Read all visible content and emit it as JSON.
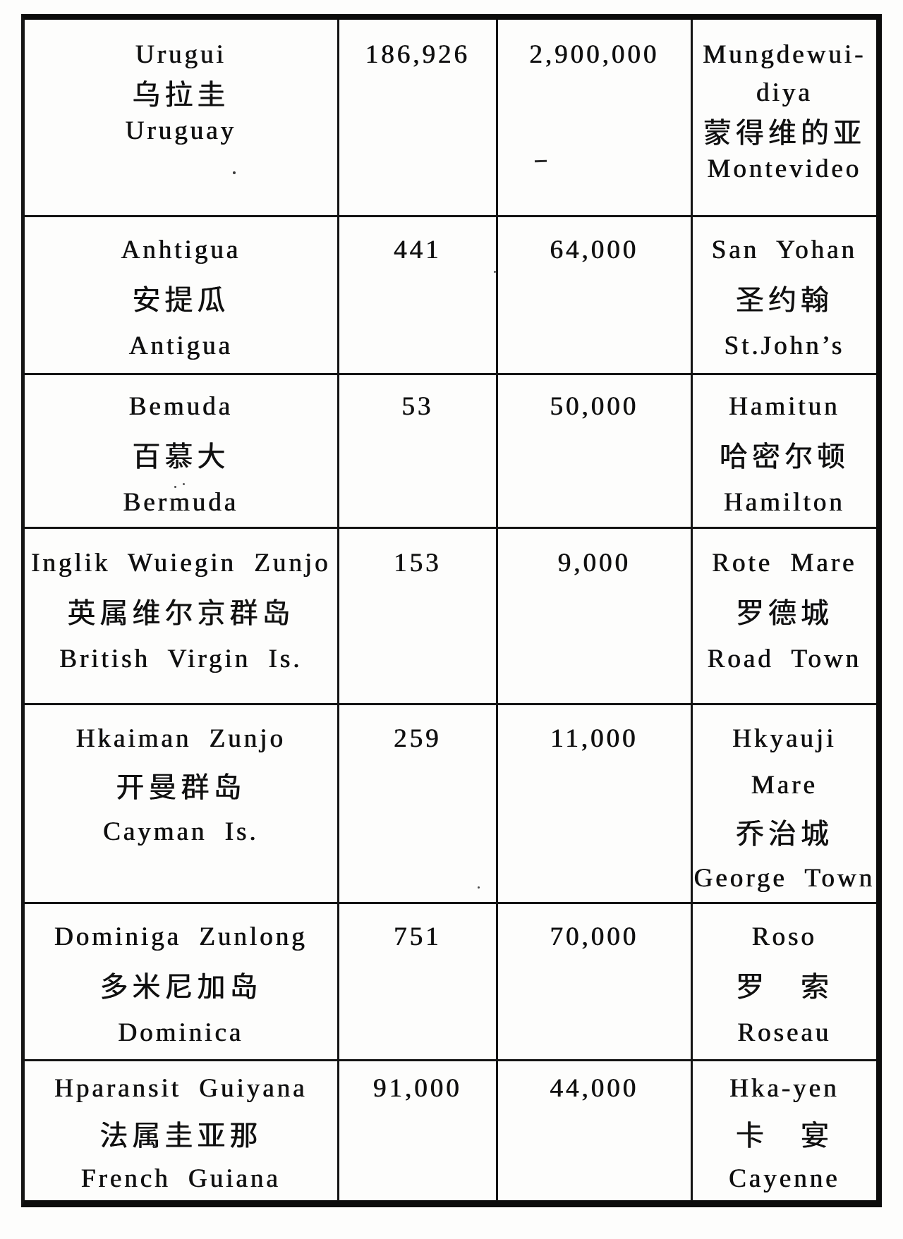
{
  "document": {
    "kind": "scanned-gazetteer-table",
    "paper_color": "#fdfdfc",
    "ink_color": "#101010"
  },
  "table": {
    "semantic_columns": [
      "country-name",
      "area",
      "population",
      "capital"
    ],
    "rows": [
      {
        "name_lines": [
          "Urugui",
          "乌拉圭",
          "Uruguay"
        ],
        "area": "186,926",
        "population": "2,900,000",
        "capital_lines": [
          "Mungdewui-",
          "diya",
          "蒙得维的亚",
          "Montevideo"
        ]
      },
      {
        "name_lines": [
          "Anhtigua",
          "安提瓜",
          "Antigua"
        ],
        "area": "441",
        "population": "64,000",
        "capital_lines": [
          "San Yohan",
          "圣约翰",
          "St.John’s"
        ]
      },
      {
        "name_lines": [
          "Bemuda",
          "百慕大",
          "Bermuda"
        ],
        "area": "53",
        "population": "50,000",
        "capital_lines": [
          "Hamitun",
          "哈密尔顿",
          "Hamilton"
        ]
      },
      {
        "name_lines": [
          "Inglik Wuiegin Zunjo",
          "英属维尔京群岛",
          "British Virgin Is."
        ],
        "area": "153",
        "population": "9,000",
        "capital_lines": [
          "Rote Mare",
          "罗德城",
          "Road Town"
        ]
      },
      {
        "name_lines": [
          "Hkaiman Zunjo",
          "开曼群岛",
          "Cayman Is."
        ],
        "area": "259",
        "population": "11,000",
        "capital_lines": [
          "Hkyauji",
          "Mare",
          "乔治城",
          "George Town"
        ]
      },
      {
        "name_lines": [
          "Dominiga Zunlong",
          "多米尼加岛",
          "Dominica"
        ],
        "area": "751",
        "population": "70,000",
        "capital_lines": [
          "Roso",
          "罗　索",
          "Roseau"
        ]
      },
      {
        "name_lines": [
          "Hparansit Guiyana",
          "法属圭亚那",
          "French Guiana"
        ],
        "area": "91,000",
        "population": "44,000",
        "capital_lines": [
          "Hka-yen",
          "卡　宴",
          "Cayenne"
        ]
      }
    ]
  }
}
